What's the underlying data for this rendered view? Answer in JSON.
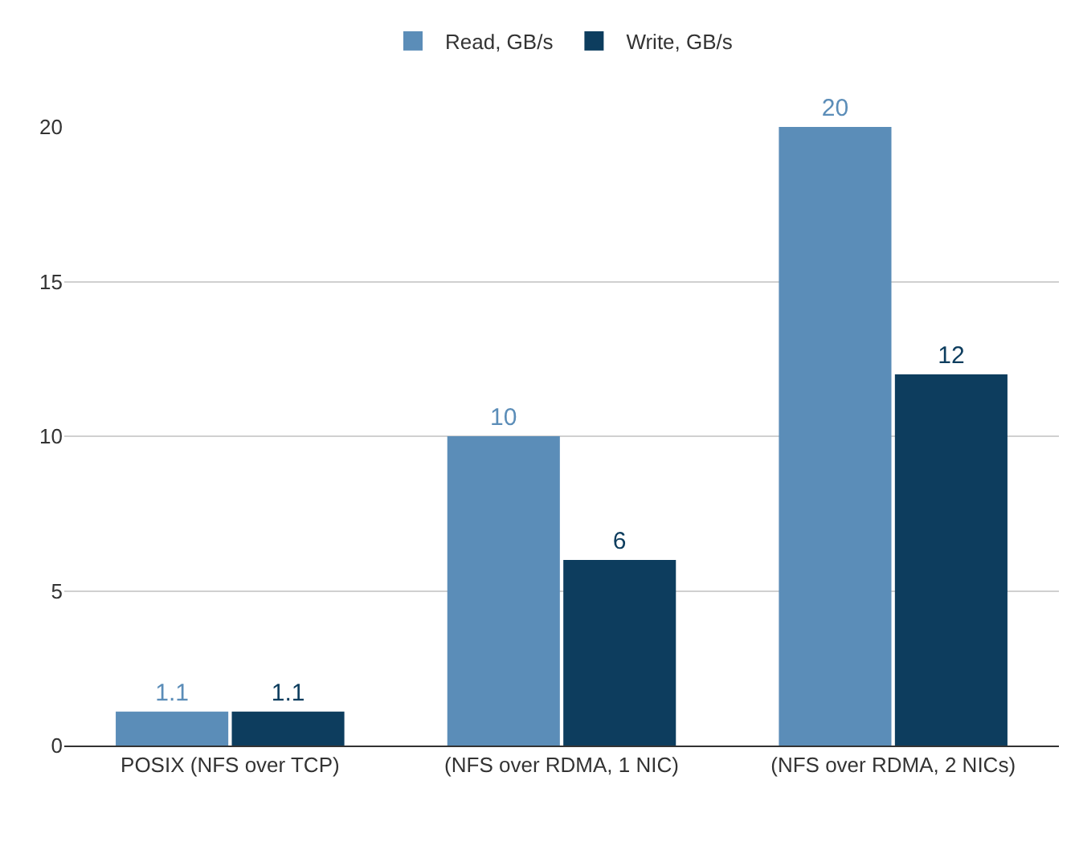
{
  "chart_data": {
    "type": "bar",
    "categories": [
      "POSIX (NFS over TCP)",
      "(NFS over RDMA, 1 NIC)",
      "(NFS over RDMA, 2 NICs)"
    ],
    "series": [
      {
        "name": "Read, GB/s",
        "color": "#5b8db8",
        "values": [
          1.1,
          10,
          20
        ]
      },
      {
        "name": "Write, GB/s",
        "color": "#0d3d5e",
        "values": [
          1.1,
          6,
          12
        ]
      }
    ],
    "ylim": [
      0,
      20
    ],
    "yticks": [
      0,
      5,
      10,
      15,
      20
    ],
    "grid": "y",
    "legend": "top",
    "data_labels": true
  }
}
